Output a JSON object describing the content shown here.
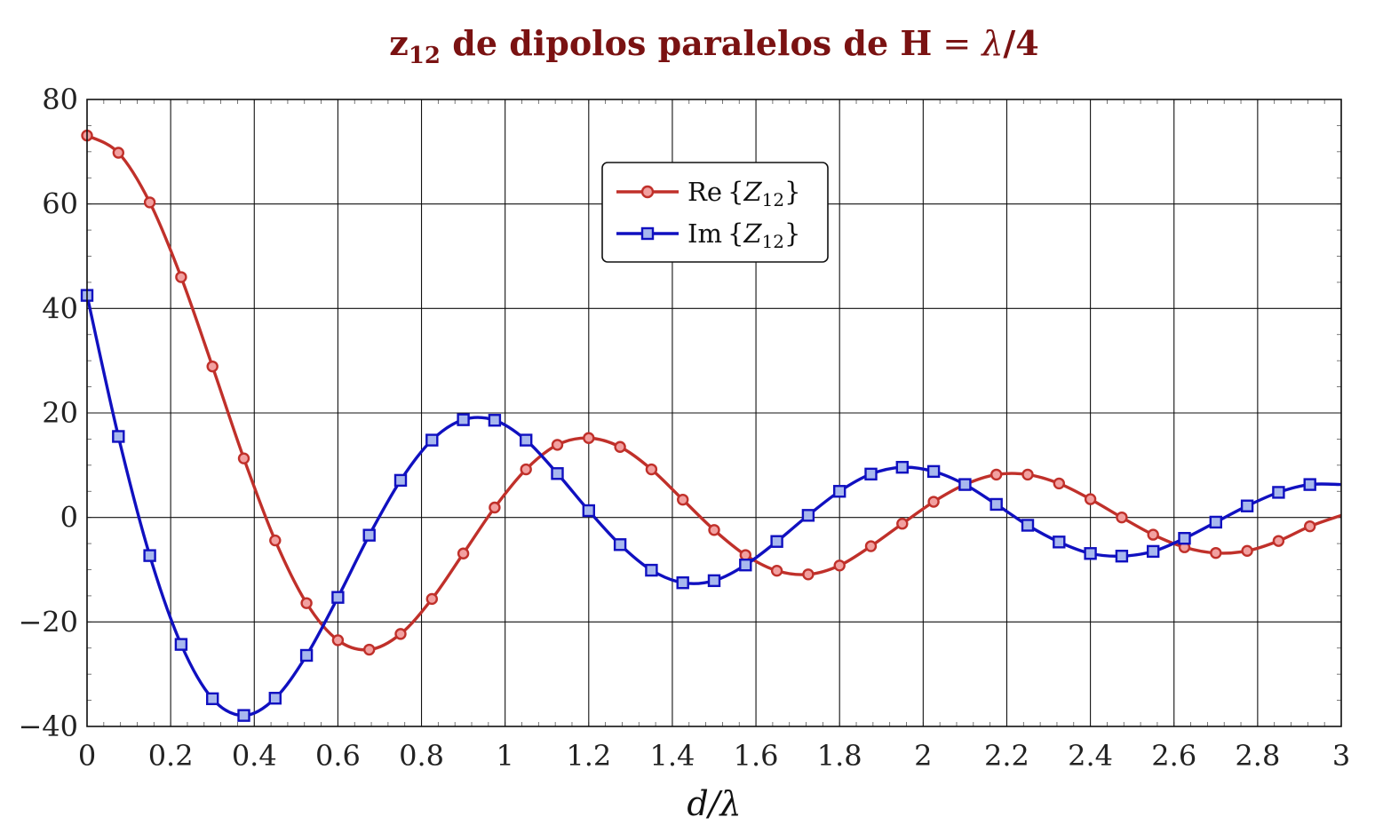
{
  "chart_data": {
    "type": "line",
    "title": "z12 de dipolos paralelos de H = λ/4",
    "title_parts": {
      "z": "z",
      "sub": "12",
      "rest": " de dipolos paralelos de ",
      "H": "H",
      "eq": " = ",
      "lam": "λ",
      "slash4": "/4"
    },
    "xlabel": "d/λ",
    "ylabel": "",
    "xlim": [
      0,
      3
    ],
    "ylim": [
      -40,
      80
    ],
    "x_ticks": [
      "0",
      "0.2",
      "0.4",
      "0.6",
      "0.8",
      "1",
      "1.2",
      "1.4",
      "1.6",
      "1.8",
      "2",
      "2.2",
      "2.4",
      "2.6",
      "2.8",
      "3"
    ],
    "y_ticks": [
      "−40",
      "−20",
      "0",
      "20",
      "40",
      "60",
      "80"
    ],
    "grid": true,
    "legend_position": "top-center",
    "title_color": "#7a1212",
    "series": [
      {
        "name": "Re{Z12}",
        "legend_parts": {
          "prefix": "Re",
          "Z": "Z",
          "sub": "12"
        },
        "color": "#c0302a",
        "marker_fill": "#f2a0a0",
        "marker": "circle",
        "points": [
          [
            0,
            73.1
          ],
          [
            0.075,
            69.8
          ],
          [
            0.15,
            60.3
          ],
          [
            0.225,
            46.0
          ],
          [
            0.3,
            28.9
          ],
          [
            0.375,
            11.3
          ],
          [
            0.45,
            -4.4
          ],
          [
            0.525,
            -16.4
          ],
          [
            0.6,
            -23.5
          ],
          [
            0.675,
            -25.3
          ],
          [
            0.75,
            -22.3
          ],
          [
            0.825,
            -15.6
          ],
          [
            0.9,
            -6.9
          ],
          [
            0.975,
            1.9
          ],
          [
            1.05,
            9.2
          ],
          [
            1.125,
            13.9
          ],
          [
            1.2,
            15.2
          ],
          [
            1.275,
            13.5
          ],
          [
            1.35,
            9.2
          ],
          [
            1.425,
            3.4
          ],
          [
            1.5,
            -2.4
          ],
          [
            1.575,
            -7.2
          ],
          [
            1.65,
            -10.2
          ],
          [
            1.725,
            -10.9
          ],
          [
            1.8,
            -9.2
          ],
          [
            1.875,
            -5.5
          ],
          [
            1.95,
            -1.2
          ],
          [
            2.025,
            3.0
          ],
          [
            2.1,
            6.3
          ],
          [
            2.175,
            8.2
          ],
          [
            2.25,
            8.2
          ],
          [
            2.325,
            6.5
          ],
          [
            2.4,
            3.5
          ],
          [
            2.475,
            0.0
          ],
          [
            2.55,
            -3.3
          ],
          [
            2.625,
            -5.7
          ],
          [
            2.7,
            -6.8
          ],
          [
            2.775,
            -6.4
          ],
          [
            2.85,
            -4.5
          ],
          [
            2.925,
            -1.7
          ],
          [
            3.0,
            0.4
          ]
        ]
      },
      {
        "name": "Im{Z12}",
        "legend_parts": {
          "prefix": "Im",
          "Z": "Z",
          "sub": "12"
        },
        "color": "#1010c0",
        "marker_fill": "#a8b8ee",
        "marker": "square",
        "points": [
          [
            0,
            42.5
          ],
          [
            0.075,
            15.5
          ],
          [
            0.15,
            -7.3
          ],
          [
            0.225,
            -24.3
          ],
          [
            0.3,
            -34.7
          ],
          [
            0.375,
            -37.9
          ],
          [
            0.45,
            -34.6
          ],
          [
            0.525,
            -26.4
          ],
          [
            0.6,
            -15.3
          ],
          [
            0.675,
            -3.4
          ],
          [
            0.75,
            7.1
          ],
          [
            0.825,
            14.8
          ],
          [
            0.9,
            18.7
          ],
          [
            0.975,
            18.6
          ],
          [
            1.05,
            14.8
          ],
          [
            1.125,
            8.4
          ],
          [
            1.2,
            1.3
          ],
          [
            1.275,
            -5.2
          ],
          [
            1.35,
            -10.1
          ],
          [
            1.425,
            -12.5
          ],
          [
            1.5,
            -12.1
          ],
          [
            1.575,
            -9.1
          ],
          [
            1.65,
            -4.6
          ],
          [
            1.725,
            0.4
          ],
          [
            1.8,
            5.0
          ],
          [
            1.875,
            8.3
          ],
          [
            1.95,
            9.6
          ],
          [
            2.025,
            8.8
          ],
          [
            2.1,
            6.3
          ],
          [
            2.175,
            2.5
          ],
          [
            2.25,
            -1.5
          ],
          [
            2.325,
            -4.7
          ],
          [
            2.4,
            -6.9
          ],
          [
            2.475,
            -7.4
          ],
          [
            2.55,
            -6.5
          ],
          [
            2.625,
            -4.0
          ],
          [
            2.7,
            -0.9
          ],
          [
            2.775,
            2.2
          ],
          [
            2.85,
            4.8
          ],
          [
            2.925,
            6.3
          ],
          [
            3.0,
            6.3
          ]
        ]
      }
    ]
  }
}
